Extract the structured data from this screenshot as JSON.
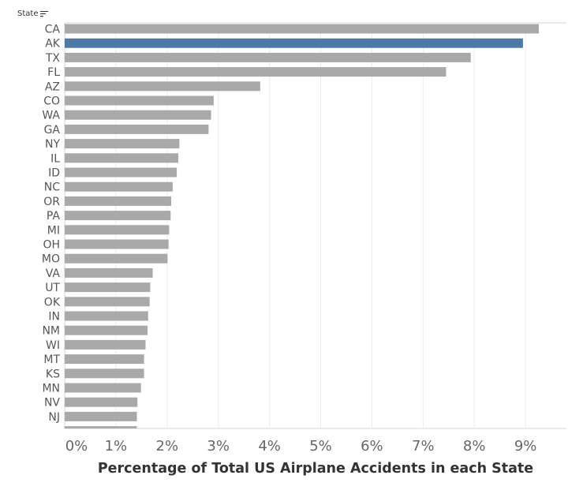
{
  "header": {
    "state_label": "State",
    "sort_icon": "sort-descending-icon"
  },
  "colors": {
    "bar": "#a9a9a9",
    "highlight": "#4e79a7",
    "grid": "#ececec",
    "tick_text": "#666666"
  },
  "chart_data": {
    "type": "bar",
    "orientation": "horizontal",
    "title": "",
    "xlabel": "Percentage of Total US Airplane Accidents in each State",
    "ylabel": "State",
    "xlim": [
      0,
      9.5
    ],
    "x_ticks": [
      "0%",
      "1%",
      "2%",
      "3%",
      "4%",
      "5%",
      "6%",
      "7%",
      "8%",
      "9%"
    ],
    "x_tick_values": [
      0,
      1,
      2,
      3,
      4,
      5,
      6,
      7,
      8,
      9
    ],
    "highlighted": "AK",
    "grid": true,
    "categories": [
      "CA",
      "AK",
      "TX",
      "FL",
      "AZ",
      "CO",
      "WA",
      "GA",
      "NY",
      "IL",
      "ID",
      "NC",
      "OR",
      "PA",
      "MI",
      "OH",
      "MO",
      "VA",
      "UT",
      "OK",
      "IN",
      "NM",
      "WI",
      "MT",
      "KS",
      "MN",
      "NV",
      "NJ"
    ],
    "values": [
      9.26,
      8.95,
      7.93,
      7.45,
      3.82,
      2.91,
      2.86,
      2.81,
      2.24,
      2.22,
      2.19,
      2.11,
      2.08,
      2.07,
      2.04,
      2.03,
      2.01,
      1.72,
      1.67,
      1.66,
      1.63,
      1.62,
      1.58,
      1.55,
      1.55,
      1.49,
      1.42,
      1.41
    ]
  }
}
